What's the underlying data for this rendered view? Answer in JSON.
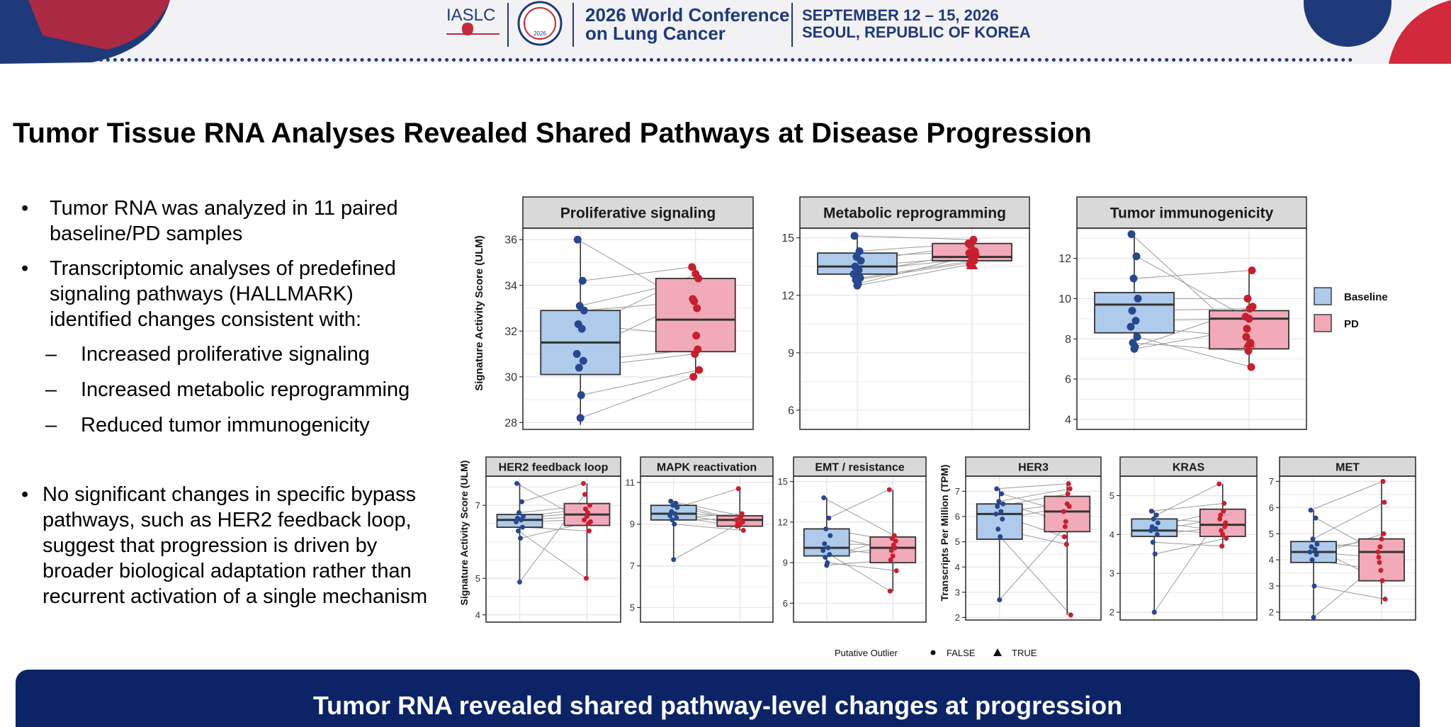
{
  "header": {
    "org": "IASLC",
    "seal_year": "2026",
    "conference_line1": "2026 World Conference",
    "conference_line2": "on Lung Cancer",
    "dates": "SEPTEMBER 12 – 15, 2026",
    "location": "SEOUL, REPUBLIC OF KOREA",
    "colors": {
      "navy": "#1f3a7a",
      "red": "#d22a3c"
    }
  },
  "title": "Tumor Tissue RNA Analyses Revealed Shared Pathways at Disease Progression",
  "bullets": [
    {
      "mark": "•",
      "lines": [
        "Tumor RNA was analyzed in 11 paired",
        "baseline/PD samples"
      ]
    },
    {
      "mark": "•",
      "lines": [
        "Transcriptomic analyses of predefined",
        "signaling pathways (HALLMARK)",
        "identified changes consistent with:"
      ]
    },
    {
      "mark": "–",
      "lines": [
        "Increased proliferative signaling"
      ]
    },
    {
      "mark": "–",
      "lines": [
        "Increased metabolic reprogramming"
      ]
    },
    {
      "mark": "–",
      "lines": [
        "Reduced tumor immunogenicity"
      ]
    },
    {
      "mark": "•",
      "lines": [
        "No significant changes in specific bypass",
        "pathways, such as HER2 feedback loop,",
        "suggest that progression is driven by",
        "broader biological adaptation rather than",
        "recurrent activation of a single mechanism"
      ]
    }
  ],
  "footer": "Tumor RNA revealed shared pathway-level changes at progression",
  "legend": {
    "groups": [
      {
        "label": "Baseline",
        "color": "#aecbeb"
      },
      {
        "label": "PD",
        "color": "#f2aab8"
      }
    ],
    "outlier_title": "Putative Outlier",
    "outlier_levels": [
      {
        "label": "FALSE",
        "shape": "circle"
      },
      {
        "label": "TRUE",
        "shape": "triangle"
      }
    ]
  },
  "colors": {
    "baseline_fill": "#aecbeb",
    "pd_fill": "#f2aab8",
    "baseline_point": "#27478f",
    "pd_point": "#c71f2e",
    "strip": "#d9d9d9"
  },
  "chart_data": [
    {
      "type": "box",
      "title": "Proliferative signaling",
      "ylabel": "Signature Activity Score (ULM)",
      "ylim": [
        27.7,
        36.5
      ],
      "yticks": [
        28,
        30,
        32,
        34,
        36
      ],
      "categories": [
        "Baseline",
        "PD"
      ],
      "box": {
        "Baseline": {
          "q1": 30.1,
          "median": 31.5,
          "q3": 32.9,
          "min": 27.9,
          "max": 36.0
        },
        "PD": {
          "q1": 31.1,
          "median": 32.5,
          "q3": 34.3,
          "min": 30.0,
          "max": 34.8
        }
      },
      "pairs": [
        [
          36.0,
          33.0
        ],
        [
          34.2,
          34.8
        ],
        [
          33.1,
          34.3
        ],
        [
          32.9,
          33.3
        ],
        [
          32.3,
          31.8
        ],
        [
          32.1,
          34.5
        ],
        [
          31.0,
          33.4
        ],
        [
          30.7,
          31.2
        ],
        [
          30.4,
          31.0
        ],
        [
          29.2,
          30.3
        ],
        [
          28.2,
          30.0
        ]
      ],
      "outliers": []
    },
    {
      "type": "box",
      "title": "Metabolic reprogramming",
      "ylabel": "",
      "ylim": [
        5.0,
        15.5
      ],
      "yticks": [
        6,
        9,
        12,
        15
      ],
      "categories": [
        "Baseline",
        "PD"
      ],
      "box": {
        "Baseline": {
          "q1": 13.1,
          "median": 13.5,
          "q3": 14.2,
          "min": 12.5,
          "max": 15.1
        },
        "PD": {
          "q1": 13.8,
          "median": 14.0,
          "q3": 14.7,
          "min": 13.6,
          "max": 14.9
        }
      },
      "pairs": [
        [
          15.1,
          14.9
        ],
        [
          14.3,
          14.7
        ],
        [
          14.0,
          14.3
        ],
        [
          13.8,
          14.6
        ],
        [
          13.5,
          14.0
        ],
        [
          13.3,
          13.9
        ],
        [
          13.1,
          14.2
        ],
        [
          12.9,
          13.8
        ],
        [
          12.8,
          13.7
        ],
        [
          12.6,
          14.1
        ],
        [
          12.5,
          13.6
        ]
      ],
      "outliers": [
        {
          "group": "PD",
          "y": 13.6
        }
      ]
    },
    {
      "type": "box",
      "title": "Tumor immunogenicity",
      "ylabel": "",
      "ylim": [
        3.5,
        13.5
      ],
      "yticks": [
        4,
        6,
        8,
        10,
        12
      ],
      "categories": [
        "Baseline",
        "PD"
      ],
      "box": {
        "Baseline": {
          "q1": 8.3,
          "median": 9.7,
          "q3": 10.3,
          "min": 7.5,
          "max": 13.2
        },
        "PD": {
          "q1": 7.5,
          "median": 9.0,
          "q3": 9.4,
          "min": 6.6,
          "max": 11.4
        }
      },
      "pairs": [
        [
          13.2,
          7.8
        ],
        [
          12.1,
          9.1
        ],
        [
          11.0,
          11.4
        ],
        [
          10.0,
          10.0
        ],
        [
          9.4,
          9.5
        ],
        [
          8.9,
          9.0
        ],
        [
          8.6,
          8.1
        ],
        [
          8.1,
          6.6
        ],
        [
          7.8,
          7.4
        ],
        [
          7.6,
          9.6
        ],
        [
          7.5,
          8.5
        ]
      ],
      "outliers": [
        {
          "group": "PD",
          "y": 7.8
        }
      ]
    },
    {
      "type": "box",
      "title": "HER2 feedback loop",
      "ylabel": "Signature Activity Score (ULM)",
      "ylim": [
        3.8,
        7.8
      ],
      "yticks": [
        4,
        5,
        7
      ],
      "categories": [
        "Baseline",
        "PD"
      ],
      "box": {
        "Baseline": {
          "q1": 6.4,
          "median": 6.6,
          "q3": 6.75,
          "min": 4.9,
          "max": 7.6
        },
        "PD": {
          "q1": 6.45,
          "median": 6.75,
          "q3": 7.05,
          "min": 5.0,
          "max": 7.6
        }
      },
      "pairs": [
        [
          7.6,
          6.5
        ],
        [
          7.1,
          7.6
        ],
        [
          6.8,
          7.0
        ],
        [
          6.7,
          6.9
        ],
        [
          6.65,
          6.8
        ],
        [
          6.6,
          6.7
        ],
        [
          6.55,
          6.6
        ],
        [
          6.4,
          6.3
        ],
        [
          6.3,
          5.0
        ],
        [
          6.1,
          6.55
        ],
        [
          4.9,
          7.3
        ]
      ],
      "outliers": []
    },
    {
      "type": "box",
      "title": "MAPK reactivation",
      "ylabel": "",
      "ylim": [
        4.3,
        11.3
      ],
      "yticks": [
        5,
        7,
        9,
        11
      ],
      "categories": [
        "Baseline",
        "PD"
      ],
      "box": {
        "Baseline": {
          "q1": 9.2,
          "median": 9.5,
          "q3": 9.9,
          "min": 7.3,
          "max": 10.1
        },
        "PD": {
          "q1": 8.9,
          "median": 9.2,
          "q3": 9.4,
          "min": 8.7,
          "max": 10.7
        }
      },
      "pairs": [
        [
          10.1,
          9.4
        ],
        [
          10.0,
          9.2
        ],
        [
          9.9,
          9.1
        ],
        [
          9.8,
          10.7
        ],
        [
          9.6,
          9.3
        ],
        [
          9.5,
          9.0
        ],
        [
          9.4,
          8.9
        ],
        [
          9.3,
          9.5
        ],
        [
          9.2,
          9.25
        ],
        [
          9.0,
          8.7
        ],
        [
          7.3,
          9.0
        ]
      ],
      "outliers": []
    },
    {
      "type": "box",
      "title": "EMT / resistance",
      "ylabel": "",
      "ylim": [
        4.6,
        15.4
      ],
      "yticks": [
        6,
        9,
        12,
        15
      ],
      "categories": [
        "Baseline",
        "PD"
      ],
      "box": {
        "Baseline": {
          "q1": 9.5,
          "median": 10.1,
          "q3": 11.5,
          "min": 8.8,
          "max": 13.8
        },
        "PD": {
          "q1": 9.0,
          "median": 10.1,
          "q3": 10.9,
          "min": 6.9,
          "max": 14.4
        }
      },
      "pairs": [
        [
          13.8,
          11.0
        ],
        [
          12.3,
          14.4
        ],
        [
          11.5,
          10.6
        ],
        [
          11.0,
          9.9
        ],
        [
          10.4,
          10.3
        ],
        [
          10.1,
          9.5
        ],
        [
          9.9,
          6.9
        ],
        [
          9.6,
          10.1
        ],
        [
          9.4,
          10.8
        ],
        [
          9.0,
          8.4
        ],
        [
          8.8,
          9.2
        ]
      ],
      "outliers": []
    },
    {
      "type": "box",
      "title": "HER3",
      "ylabel": "Transcripts Per Million (TPM)",
      "ylim": [
        1.9,
        7.6
      ],
      "yticks": [
        2,
        3,
        4,
        5,
        6,
        7
      ],
      "categories": [
        "Baseline",
        "PD"
      ],
      "box": {
        "Baseline": {
          "q1": 5.1,
          "median": 6.1,
          "q3": 6.5,
          "min": 2.7,
          "max": 7.1
        },
        "PD": {
          "q1": 5.4,
          "median": 6.2,
          "q3": 6.8,
          "min": 2.1,
          "max": 7.3
        }
      },
      "pairs": [
        [
          7.1,
          7.3
        ],
        [
          6.9,
          6.2
        ],
        [
          6.6,
          7.1
        ],
        [
          6.5,
          5.8
        ],
        [
          6.4,
          6.9
        ],
        [
          6.2,
          6.5
        ],
        [
          6.1,
          5.2
        ],
        [
          5.9,
          6.4
        ],
        [
          5.5,
          4.9
        ],
        [
          5.2,
          2.1
        ],
        [
          2.7,
          5.6
        ]
      ],
      "outliers": []
    },
    {
      "type": "box",
      "title": "KRAS",
      "ylabel": "",
      "ylim": [
        1.8,
        5.5
      ],
      "yticks": [
        2,
        3,
        4,
        5
      ],
      "categories": [
        "Baseline",
        "PD"
      ],
      "box": {
        "Baseline": {
          "q1": 3.95,
          "median": 4.1,
          "q3": 4.4,
          "min": 2.0,
          "max": 4.6
        },
        "PD": {
          "q1": 3.95,
          "median": 4.25,
          "q3": 4.65,
          "min": 3.7,
          "max": 5.3
        }
      },
      "pairs": [
        [
          4.6,
          4.8
        ],
        [
          4.5,
          5.3
        ],
        [
          4.4,
          4.3
        ],
        [
          4.3,
          4.1
        ],
        [
          4.2,
          4.6
        ],
        [
          4.15,
          4.0
        ],
        [
          4.1,
          4.4
        ],
        [
          4.0,
          4.2
        ],
        [
          3.8,
          3.7
        ],
        [
          3.5,
          3.9
        ],
        [
          2.0,
          4.5
        ]
      ],
      "outliers": []
    },
    {
      "type": "box",
      "title": "MET",
      "ylabel": "",
      "ylim": [
        1.7,
        7.2
      ],
      "yticks": [
        2,
        3,
        4,
        5,
        6,
        7
      ],
      "categories": [
        "Baseline",
        "PD"
      ],
      "box": {
        "Baseline": {
          "q1": 3.9,
          "median": 4.3,
          "q3": 4.7,
          "min": 1.8,
          "max": 5.9
        },
        "PD": {
          "q1": 3.2,
          "median": 4.3,
          "q3": 4.8,
          "min": 2.3,
          "max": 7.0
        }
      },
      "pairs": [
        [
          5.9,
          7.0
        ],
        [
          5.6,
          4.3
        ],
        [
          4.8,
          6.2
        ],
        [
          4.6,
          4.5
        ],
        [
          4.5,
          3.2
        ],
        [
          4.4,
          4.8
        ],
        [
          4.3,
          4.1
        ],
        [
          4.2,
          5.0
        ],
        [
          4.0,
          3.6
        ],
        [
          3.0,
          2.5
        ],
        [
          1.8,
          3.9
        ]
      ],
      "outliers": []
    }
  ]
}
